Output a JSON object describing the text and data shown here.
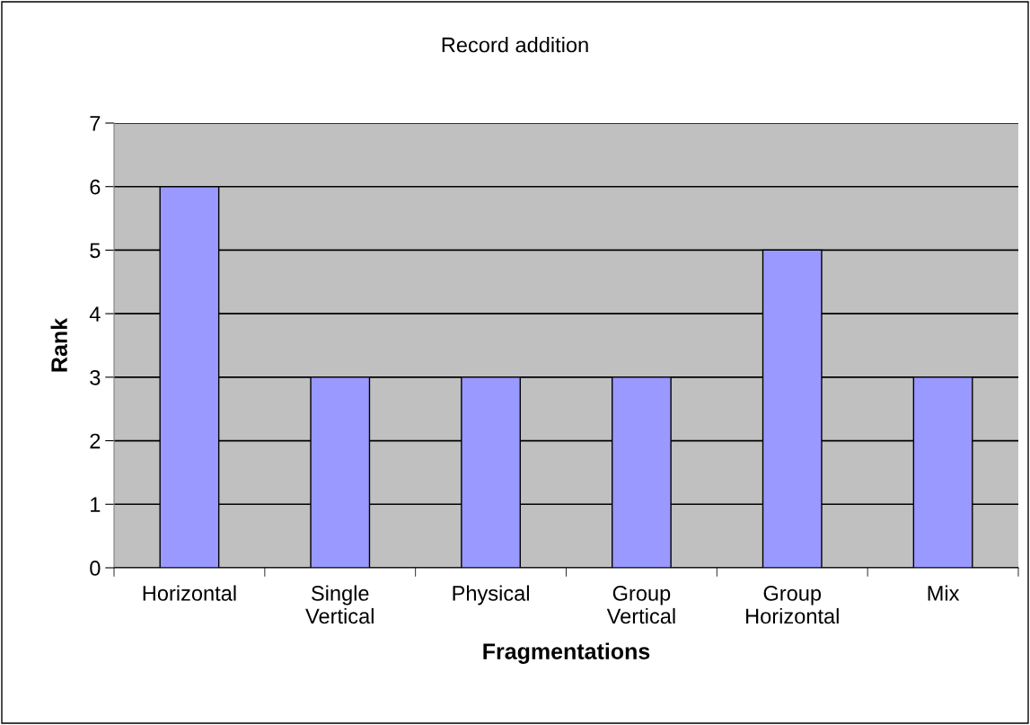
{
  "chart_data": {
    "type": "bar",
    "title": "Record addition",
    "xlabel": "Fragmentations",
    "ylabel": "Rank",
    "categories": [
      "Horizontal",
      "Single\nVertical",
      "Physical",
      "Group\nVertical",
      "Group\nHorizontal",
      "Mix"
    ],
    "values": [
      6,
      3,
      3,
      3,
      5,
      3
    ],
    "color": "#9999ff",
    "ylim": [
      0,
      7
    ],
    "yticks": [
      0,
      1,
      2,
      3,
      4,
      5,
      6,
      7
    ],
    "grid": "y"
  }
}
